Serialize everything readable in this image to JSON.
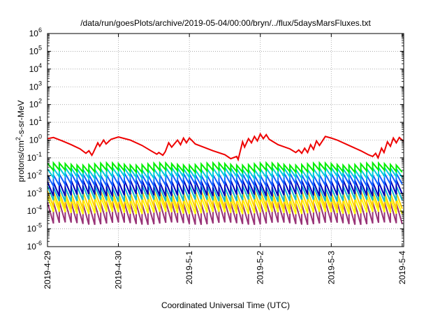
{
  "chart_data": {
    "type": "line",
    "title": "/data/run/goesPlots/archive/2019-05-04/00:00/bryn/../flux/5daysMarsFluxes.txt",
    "xlabel": "Coordinated Universal Time (UTC)",
    "ylabel": {
      "base": "protons/cm",
      "sup": "2",
      "rest": "-s-sr-MeV"
    },
    "yscale": "log",
    "ylim": [
      1e-06,
      1000000.0
    ],
    "yticks": [
      {
        "value": 1e-06,
        "base": "10",
        "exp": "-6"
      },
      {
        "value": 1e-05,
        "base": "10",
        "exp": "-5"
      },
      {
        "value": 0.0001,
        "base": "10",
        "exp": "-4"
      },
      {
        "value": 0.001,
        "base": "10",
        "exp": "-3"
      },
      {
        "value": 0.01,
        "base": "10",
        "exp": "-2"
      },
      {
        "value": 0.1,
        "base": "10",
        "exp": "-1"
      },
      {
        "value": 1,
        "base": "10",
        "exp": "0"
      },
      {
        "value": 10,
        "base": "10",
        "exp": "1"
      },
      {
        "value": 100,
        "base": "10",
        "exp": "2"
      },
      {
        "value": 1000,
        "base": "10",
        "exp": "3"
      },
      {
        "value": 10000,
        "base": "10",
        "exp": "4"
      },
      {
        "value": 100000,
        "base": "10",
        "exp": "5"
      },
      {
        "value": 1000000,
        "base": "10",
        "exp": "6"
      }
    ],
    "xlim": [
      "2019-04-29",
      "2019-05-04 00:30"
    ],
    "xticks": [
      "2019-4-29",
      "2019-4-30",
      "2019-5-1",
      "2019-5-2",
      "2019-5-3",
      "2019-5-4"
    ],
    "grid": true,
    "series": [
      {
        "color": "#ee0000",
        "x": [
          "2019-04-29 00:00",
          "2019-04-29 02:00",
          "2019-04-29 05:00",
          "2019-04-29 08:00",
          "2019-04-29 11:00",
          "2019-04-29 13:00",
          "2019-04-29 14:00",
          "2019-04-29 15:00",
          "2019-04-29 15:30",
          "2019-04-29 17:00",
          "2019-04-29 17:40",
          "2019-04-29 19:00",
          "2019-04-29 19:50",
          "2019-04-29 21:30",
          "2019-04-30 00:00",
          "2019-04-30 04:00",
          "2019-04-30 08:00",
          "2019-04-30 11:00",
          "2019-04-30 13:00",
          "2019-04-30 13:40",
          "2019-04-30 15:00",
          "2019-04-30 15:50",
          "2019-04-30 17:00",
          "2019-04-30 18:00",
          "2019-04-30 20:00",
          "2019-04-30 21:00",
          "2019-04-30 22:00",
          "2019-04-30 23:00",
          "2019-05-01 00:00",
          "2019-05-01 01:00",
          "2019-05-01 02:00",
          "2019-05-01 04:00",
          "2019-05-01 08:00",
          "2019-05-01 12:00",
          "2019-05-01 14:00",
          "2019-05-01 16:00",
          "2019-05-01 16:30",
          "2019-05-01 18:00",
          "2019-05-01 18:40",
          "2019-05-01 20:00",
          "2019-05-01 21:00",
          "2019-05-01 22:00",
          "2019-05-01 23:00",
          "2019-05-02 00:00",
          "2019-05-02 01:00",
          "2019-05-02 02:00",
          "2019-05-02 03:00",
          "2019-05-02 06:00",
          "2019-05-02 10:00",
          "2019-05-02 12:00",
          "2019-05-02 13:00",
          "2019-05-02 14:00",
          "2019-05-02 15:00",
          "2019-05-02 16:00",
          "2019-05-02 17:00",
          "2019-05-02 18:00",
          "2019-05-02 19:00",
          "2019-05-02 20:00",
          "2019-05-02 22:00",
          "2019-05-03 00:00",
          "2019-05-03 02:00",
          "2019-05-03 06:00",
          "2019-05-03 10:00",
          "2019-05-03 12:30",
          "2019-05-03 14:00",
          "2019-05-03 15:00",
          "2019-05-03 15:50",
          "2019-05-03 17:00",
          "2019-05-03 17:50",
          "2019-05-03 19:00",
          "2019-05-03 20:00",
          "2019-05-03 21:00",
          "2019-05-03 22:00",
          "2019-05-03 23:00",
          "2019-05-04 00:00",
          "2019-05-04 00:30"
        ],
        "values": [
          1.2,
          1.4,
          0.9,
          0.55,
          0.32,
          0.18,
          0.25,
          0.14,
          0.2,
          0.7,
          0.45,
          1.0,
          0.6,
          1.1,
          1.5,
          1.0,
          0.5,
          0.25,
          0.16,
          0.2,
          0.14,
          0.22,
          0.7,
          0.4,
          1.0,
          0.55,
          1.3,
          0.7,
          1.3,
          0.9,
          0.6,
          0.45,
          0.25,
          0.15,
          0.09,
          0.12,
          0.08,
          0.8,
          0.4,
          1.2,
          0.7,
          1.6,
          0.9,
          2.2,
          1.2,
          2.0,
          1.1,
          0.55,
          0.32,
          0.2,
          0.28,
          0.18,
          0.35,
          0.2,
          0.55,
          0.3,
          0.9,
          0.5,
          1.6,
          1.3,
          1.0,
          0.5,
          0.25,
          0.15,
          0.12,
          0.18,
          0.1,
          0.35,
          0.2,
          0.8,
          0.45,
          1.3,
          0.7,
          1.4,
          1.0,
          0.9
        ]
      },
      {
        "color": "#00ee00",
        "sawtooth": {
          "start": "2019-04-29 00:00",
          "period_hours": 2,
          "count": 60,
          "hi": 0.045,
          "lo": 0.018
        }
      },
      {
        "color": "#00ccdd",
        "sawtooth": {
          "start": "2019-04-29 00:00",
          "period_hours": 2,
          "count": 60,
          "hi": 0.025,
          "lo": 0.008
        }
      },
      {
        "color": "#1060ff",
        "sawtooth": {
          "start": "2019-04-29 00:00",
          "period_hours": 2,
          "count": 60,
          "hi": 0.012,
          "lo": 0.003
        }
      },
      {
        "color": "#0000bb",
        "sawtooth": {
          "start": "2019-04-29 00:00",
          "period_hours": 2,
          "count": 60,
          "hi": 0.005,
          "lo": 0.0008
        }
      },
      {
        "color": "#11bbcc",
        "sawtooth": {
          "start": "2019-04-29 00:00",
          "period_hours": 2,
          "count": 60,
          "hi": 0.0025,
          "lo": 0.0004
        }
      },
      {
        "color": "#ffd000",
        "sawtooth": {
          "start": "2019-04-29 00:00",
          "period_hours": 2,
          "count": 60,
          "hi": 0.0012,
          "lo": 0.00015
        }
      },
      {
        "color": "#ffff00",
        "sawtooth": {
          "start": "2019-04-29 00:00",
          "period_hours": 2,
          "count": 60,
          "hi": 0.0006,
          "lo": 8e-05
        }
      },
      {
        "color": "#993377",
        "sawtooth": {
          "start": "2019-04-29 00:00",
          "period_hours": 2,
          "count": 60,
          "hi": 0.0003,
          "lo": 2e-05
        }
      }
    ]
  }
}
